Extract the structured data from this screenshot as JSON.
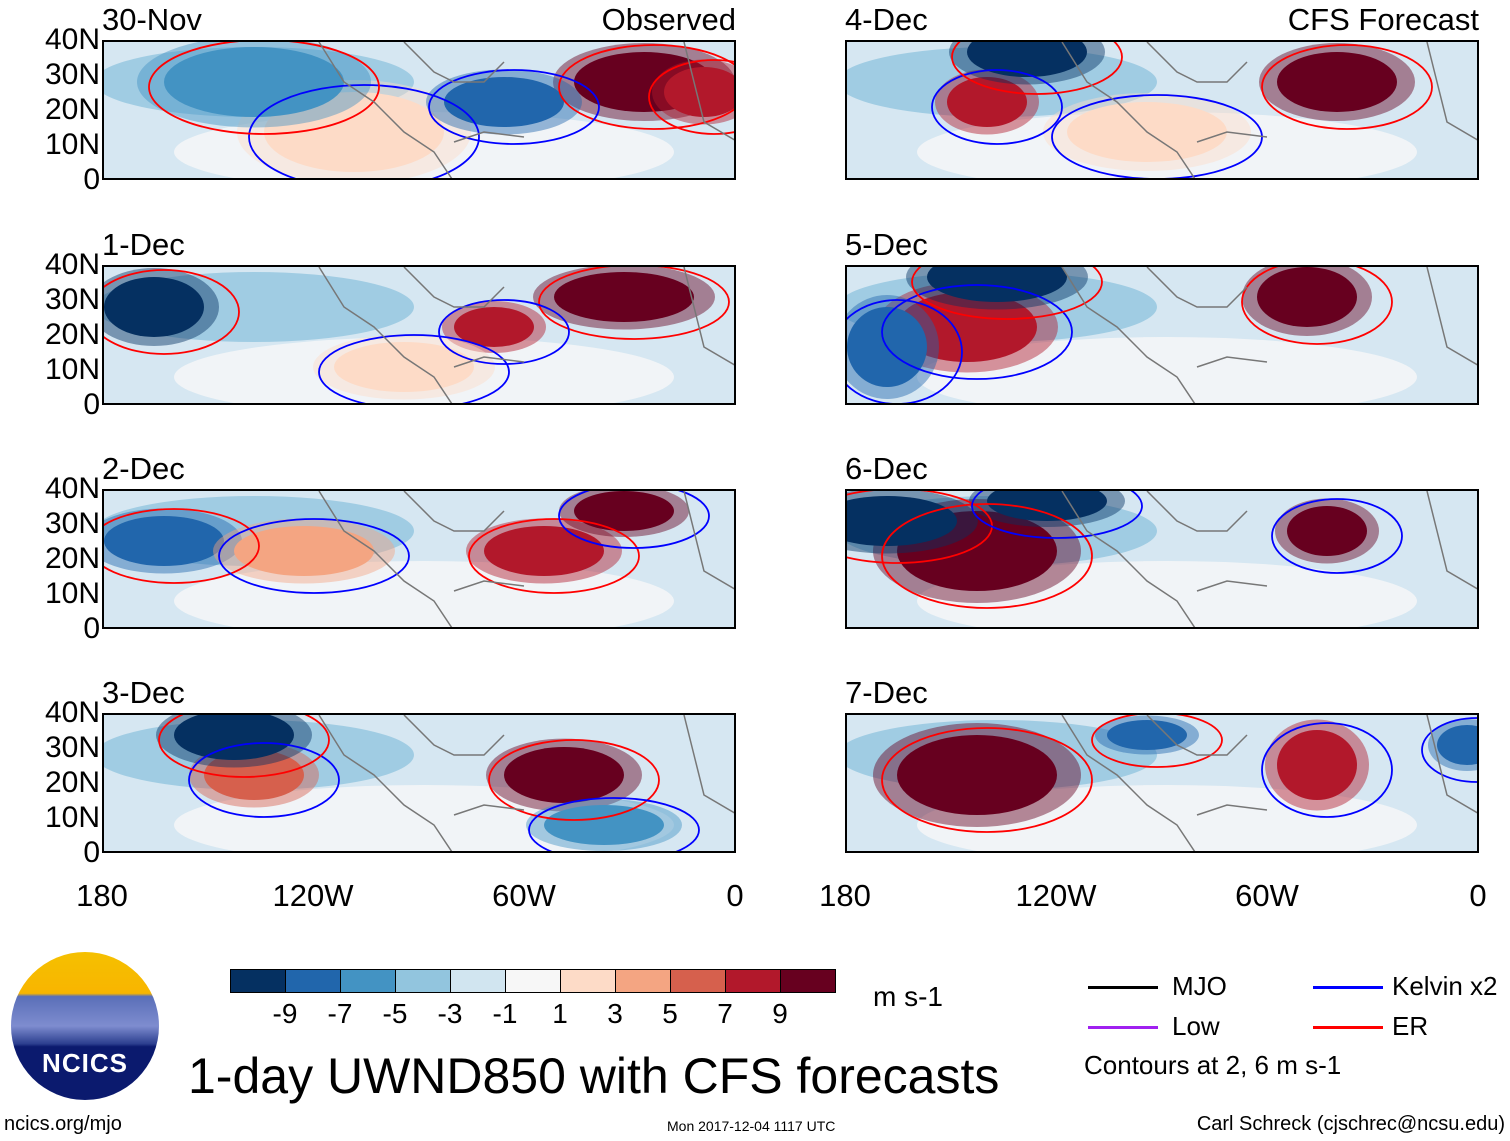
{
  "panels": [
    {
      "date": "30-Nov",
      "tag": "Observed"
    },
    {
      "date": "1-Dec"
    },
    {
      "date": "2-Dec"
    },
    {
      "date": "3-Dec"
    },
    {
      "date": "4-Dec",
      "tag": "CFS Forecast"
    },
    {
      "date": "5-Dec"
    },
    {
      "date": "6-Dec"
    },
    {
      "date": "7-Dec"
    }
  ],
  "lat_labels": [
    "40N",
    "30N",
    "20N",
    "10N",
    "0"
  ],
  "lon_labels": [
    "180",
    "120W",
    "60W",
    "0"
  ],
  "colorbar": {
    "colors": [
      "#053061",
      "#2166ac",
      "#4393c3",
      "#92c5de",
      "#d1e5f0",
      "#f7f7f7",
      "#fddbc7",
      "#f4a582",
      "#d6604d",
      "#b2182b",
      "#67001f"
    ],
    "labels": [
      "-9",
      "-7",
      "-5",
      "-3",
      "-1",
      "1",
      "3",
      "5",
      "7",
      "9"
    ],
    "units": "m s-1"
  },
  "legend": {
    "items": [
      {
        "label": "MJO",
        "color": "#000000"
      },
      {
        "label": "Kelvin x2",
        "color": "#0000ff"
      },
      {
        "label": "Low",
        "color": "#a020f0"
      },
      {
        "label": "ER",
        "color": "#ff0000"
      }
    ],
    "note": "Contours at 2, 6 m s-1"
  },
  "logo_text": "NCICS",
  "title": "1-day UWND850 with CFS forecasts",
  "footer": {
    "url": "ncics.org/mjo",
    "timestamp": "Mon 2017-12-04 1117 UTC",
    "credit": "Carl Schreck (cjschrec@ncsu.edu)"
  }
}
